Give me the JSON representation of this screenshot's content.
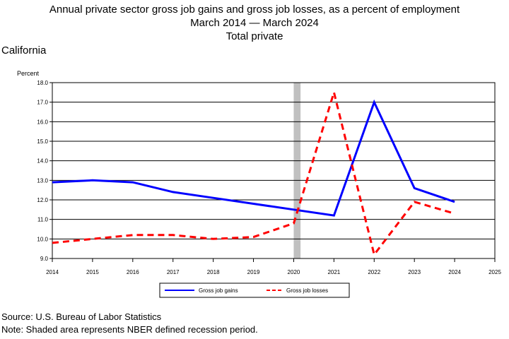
{
  "header": {
    "title": "Annual private sector gross job gains and gross job losses, as a percent of employment",
    "subtitle": "March 2014 — March 2024",
    "series_label": "Total private",
    "region": "California"
  },
  "footer": {
    "source": "Source: U.S. Bureau of Labor Statistics",
    "note": "Note: Shaded area represents NBER defined recession period."
  },
  "chart_data": {
    "type": "line",
    "title": "Annual private sector gross job gains and gross job losses, as a percent of employment",
    "ylabel": "Percent",
    "xlim": [
      2014,
      2025
    ],
    "ylim": [
      9.0,
      18.0
    ],
    "x_ticks": [
      "2014",
      "2015",
      "2016",
      "2017",
      "2018",
      "2019",
      "2020",
      "2021",
      "2022",
      "2023",
      "2024",
      "2025"
    ],
    "y_ticks": [
      "9.0",
      "10.0",
      "11.0",
      "12.0",
      "13.0",
      "14.0",
      "15.0",
      "16.0",
      "17.0",
      "18.0"
    ],
    "grid": true,
    "legend_position": "bottom",
    "recession": {
      "start": 2020.0,
      "end": 2020.17,
      "color": "#c0c0c0"
    },
    "series": [
      {
        "name": "Gross job gains",
        "color": "#0000ff",
        "style": "solid",
        "x": [
          2014,
          2015,
          2016,
          2017,
          2018,
          2019,
          2020,
          2021,
          2022,
          2023,
          2024
        ],
        "values": [
          12.9,
          13.0,
          12.9,
          12.4,
          12.1,
          11.8,
          11.5,
          11.2,
          17.0,
          12.6,
          11.9
        ]
      },
      {
        "name": "Gross job losses",
        "color": "#ff0000",
        "style": "dashed",
        "x": [
          2014,
          2015,
          2016,
          2017,
          2018,
          2019,
          2020,
          2021,
          2022,
          2023,
          2024
        ],
        "values": [
          9.8,
          10.0,
          10.2,
          10.2,
          10.0,
          10.1,
          10.8,
          17.5,
          9.2,
          11.9,
          11.3
        ]
      }
    ]
  }
}
